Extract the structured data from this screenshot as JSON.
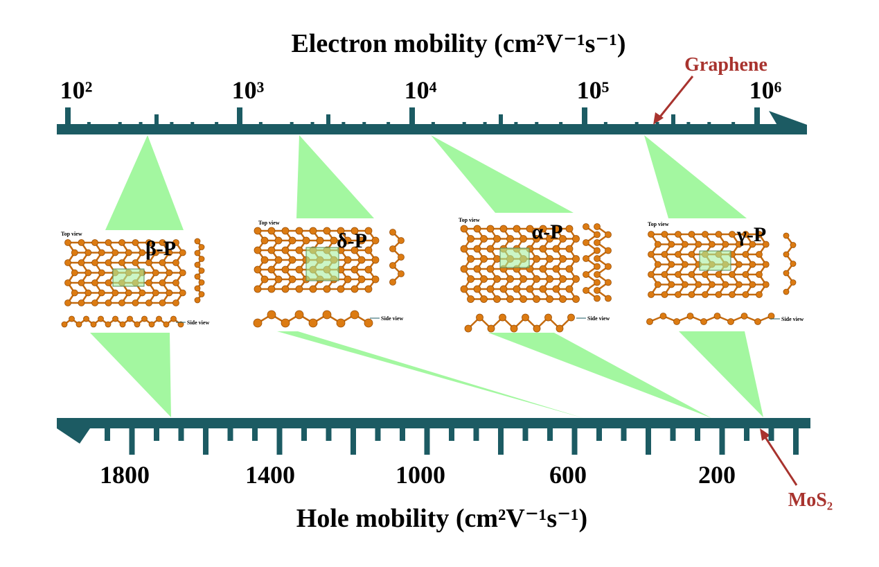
{
  "top_axis": {
    "title": "Electron mobility (cm²V⁻¹s⁻¹)",
    "ticks": [
      "10²",
      "10³",
      "10⁴",
      "10⁵",
      "10⁶"
    ],
    "marker": "Graphene"
  },
  "bottom_axis": {
    "title": "Hole mobility (cm²V⁻¹s⁻¹)",
    "ticks": [
      "1800",
      "1400",
      "1000",
      "600",
      "200"
    ],
    "marker": "MoS₂"
  },
  "materials": [
    {
      "label": "β-P",
      "top_view": "Top view",
      "side_view": "Side view"
    },
    {
      "label": "δ-P",
      "top_view": "Top view",
      "side_view": "Side view"
    },
    {
      "label": "α-P",
      "top_view": "Top view",
      "side_view": "Side view"
    },
    {
      "label": "γ-P",
      "top_view": "Top view",
      "side_view": "Side view"
    }
  ]
}
